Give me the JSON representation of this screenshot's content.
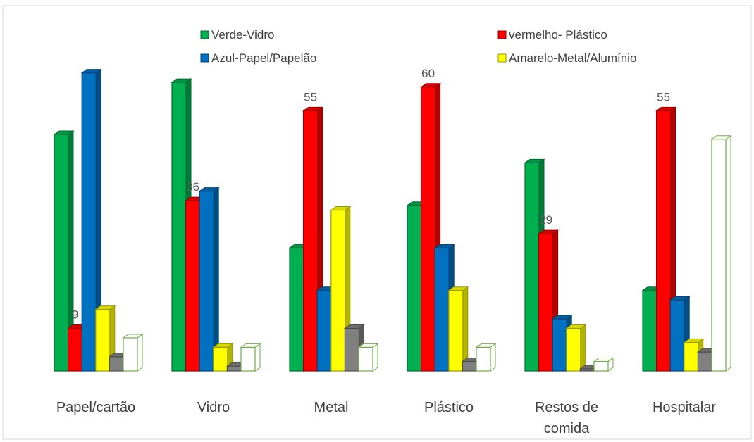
{
  "chart_data": {
    "type": "bar",
    "title": "",
    "xlabel": "",
    "ylabel": "",
    "style": "3d-clustered-column",
    "grid": false,
    "legend_position": "top",
    "ylim": [
      0,
      70
    ],
    "categories": [
      "Papel/cartão",
      "Vidro",
      "Metal",
      "Plástico",
      "Restos de comida",
      "Hospitalar"
    ],
    "category_lines": [
      [
        "Papel/cartão"
      ],
      [
        "Vidro"
      ],
      [
        "Metal"
      ],
      [
        "Plástico"
      ],
      [
        "Restos de",
        "comida"
      ],
      [
        "Hospitalar"
      ]
    ],
    "series": [
      {
        "name": "Verde-Vidro",
        "color": "#00B050",
        "values": [
          50,
          61,
          26,
          35,
          44,
          17
        ]
      },
      {
        "name": "vermelho- Plástico",
        "color": "#FF0000",
        "values": [
          9,
          36,
          55,
          60,
          29,
          55
        ]
      },
      {
        "name": "Azul-Papel/Papelão",
        "color": "#0070C0",
        "values": [
          63,
          38,
          17,
          26,
          11,
          15
        ]
      },
      {
        "name": "Amarelo-Metal/Alumínio",
        "color": "#FFFF00",
        "values": [
          13,
          5,
          34,
          17,
          9,
          6
        ]
      },
      {
        "name": "",
        "color": "#808080",
        "values": [
          3,
          1,
          9,
          2,
          0,
          4
        ]
      },
      {
        "name": "",
        "color": "#FFFFFF",
        "stroke": "#70AD47",
        "values": [
          7,
          5,
          5,
          5,
          2,
          49
        ]
      }
    ],
    "data_labels": [
      {
        "series": 1,
        "category": 0,
        "text": "9"
      },
      {
        "series": 1,
        "category": 1,
        "text": "36"
      },
      {
        "series": 1,
        "category": 2,
        "text": "55"
      },
      {
        "series": 1,
        "category": 3,
        "text": "60"
      },
      {
        "series": 1,
        "category": 4,
        "text": "29"
      },
      {
        "series": 1,
        "category": 5,
        "text": "55"
      }
    ]
  }
}
